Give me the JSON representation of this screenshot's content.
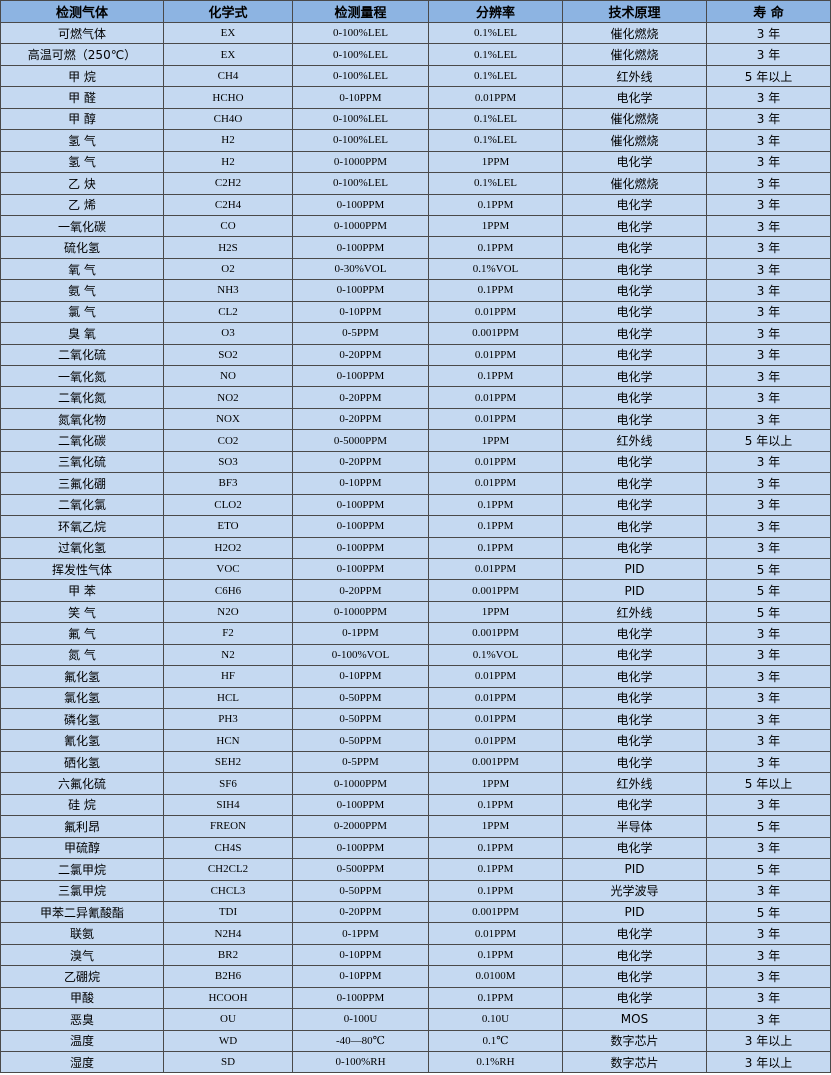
{
  "headers": [
    "检测气体",
    "化学式",
    "检测量程",
    "分辨率",
    "技术原理",
    "寿 命"
  ],
  "rows": [
    [
      "可燃气体",
      "EX",
      "0-100%LEL",
      "0.1%LEL",
      "催化燃烧",
      "3 年"
    ],
    [
      "高温可燃（250℃）",
      "EX",
      "0-100%LEL",
      "0.1%LEL",
      "催化燃烧",
      "3 年"
    ],
    [
      "甲 烷",
      "CH4",
      "0-100%LEL",
      "0.1%LEL",
      "红外线",
      "5 年以上"
    ],
    [
      "甲 醛",
      "HCHO",
      "0-10PPM",
      "0.01PPM",
      "电化学",
      "3 年"
    ],
    [
      "甲 醇",
      "CH4O",
      "0-100%LEL",
      "0.1%LEL",
      "催化燃烧",
      "3 年"
    ],
    [
      "氢 气",
      "H2",
      "0-100%LEL",
      "0.1%LEL",
      "催化燃烧",
      "3 年"
    ],
    [
      "氢 气",
      "H2",
      "0-1000PPM",
      "1PPM",
      "电化学",
      "3 年"
    ],
    [
      "乙 炔",
      "C2H2",
      "0-100%LEL",
      "0.1%LEL",
      "催化燃烧",
      "3 年"
    ],
    [
      "乙 烯",
      "C2H4",
      "0-100PPM",
      "0.1PPM",
      "电化学",
      "3 年"
    ],
    [
      "一氧化碳",
      "CO",
      "0-1000PPM",
      "1PPM",
      "电化学",
      "3 年"
    ],
    [
      "硫化氢",
      "H2S",
      "0-100PPM",
      "0.1PPM",
      "电化学",
      "3 年"
    ],
    [
      "氧 气",
      "O2",
      "0-30%VOL",
      "0.1%VOL",
      "电化学",
      "3 年"
    ],
    [
      "氨 气",
      "NH3",
      "0-100PPM",
      "0.1PPM",
      "电化学",
      "3 年"
    ],
    [
      "氯 气",
      "CL2",
      "0-10PPM",
      "0.01PPM",
      "电化学",
      "3 年"
    ],
    [
      "臭 氧",
      "O3",
      "0-5PPM",
      "0.001PPM",
      "电化学",
      "3 年"
    ],
    [
      "二氧化硫",
      "SO2",
      "0-20PPM",
      "0.01PPM",
      "电化学",
      "3 年"
    ],
    [
      "一氧化氮",
      "NO",
      "0-100PPM",
      "0.1PPM",
      "电化学",
      "3 年"
    ],
    [
      "二氧化氮",
      "NO2",
      "0-20PPM",
      "0.01PPM",
      "电化学",
      "3 年"
    ],
    [
      "氮氧化物",
      "NOX",
      "0-20PPM",
      "0.01PPM",
      "电化学",
      "3 年"
    ],
    [
      "二氧化碳",
      "CO2",
      "0-5000PPM",
      "1PPM",
      "红外线",
      "5 年以上"
    ],
    [
      "三氧化硫",
      "SO3",
      "0-20PPM",
      "0.01PPM",
      "电化学",
      "3 年"
    ],
    [
      "三氟化硼",
      "BF3",
      "0-10PPM",
      "0.01PPM",
      "电化学",
      "3 年"
    ],
    [
      "二氧化氯",
      "CLO2",
      "0-100PPM",
      "0.1PPM",
      "电化学",
      "3 年"
    ],
    [
      "环氧乙烷",
      "ETO",
      "0-100PPM",
      "0.1PPM",
      "电化学",
      "3 年"
    ],
    [
      "过氧化氢",
      "H2O2",
      "0-100PPM",
      "0.1PPM",
      "电化学",
      "3 年"
    ],
    [
      "挥发性气体",
      "VOC",
      "0-100PPM",
      "0.01PPM",
      "PID",
      "5 年"
    ],
    [
      "甲 苯",
      "C6H6",
      "0-20PPM",
      "0.001PPM",
      "PID",
      "5 年"
    ],
    [
      "笑 气",
      "N2O",
      "0-1000PPM",
      "1PPM",
      "红外线",
      "5 年"
    ],
    [
      "氟 气",
      "F2",
      "0-1PPM",
      "0.001PPM",
      "电化学",
      "3 年"
    ],
    [
      "氮 气",
      "N2",
      "0-100%VOL",
      "0.1%VOL",
      "电化学",
      "3 年"
    ],
    [
      "氟化氢",
      "HF",
      "0-10PPM",
      "0.01PPM",
      "电化学",
      "3 年"
    ],
    [
      "氯化氢",
      "HCL",
      "0-50PPM",
      "0.01PPM",
      "电化学",
      "3 年"
    ],
    [
      "磷化氢",
      "PH3",
      "0-50PPM",
      "0.01PPM",
      "电化学",
      "3 年"
    ],
    [
      "氰化氢",
      "HCN",
      "0-50PPM",
      "0.01PPM",
      "电化学",
      "3 年"
    ],
    [
      "硒化氢",
      "SEH2",
      "0-5PPM",
      "0.001PPM",
      "电化学",
      "3 年"
    ],
    [
      "六氟化硫",
      "SF6",
      "0-1000PPM",
      "1PPM",
      "红外线",
      "5 年以上"
    ],
    [
      "硅 烷",
      "SIH4",
      "0-100PPM",
      "0.1PPM",
      "电化学",
      "3 年"
    ],
    [
      "氟利昂",
      "FREON",
      "0-2000PPM",
      "1PPM",
      "半导体",
      "5 年"
    ],
    [
      "甲硫醇",
      "CH4S",
      "0-100PPM",
      "0.1PPM",
      "电化学",
      "3 年"
    ],
    [
      "二氯甲烷",
      "CH2CL2",
      "0-500PPM",
      "0.1PPM",
      "PID",
      "5 年"
    ],
    [
      "三氯甲烷",
      "CHCL3",
      "0-50PPM",
      "0.1PPM",
      "光学波导",
      "3 年"
    ],
    [
      "甲苯二异氰酸酯",
      "TDI",
      "0-20PPM",
      "0.001PPM",
      "PID",
      "5 年"
    ],
    [
      "联氨",
      "N2H4",
      "0-1PPM",
      "0.01PPM",
      "电化学",
      "3 年"
    ],
    [
      "溴气",
      "BR2",
      "0-10PPM",
      "0.1PPM",
      "电化学",
      "3 年"
    ],
    [
      "乙硼烷",
      "B2H6",
      "0-10PPM",
      "0.0100M",
      "电化学",
      "3 年"
    ],
    [
      "甲酸",
      "HCOOH",
      "0-100PPM",
      "0.1PPM",
      "电化学",
      "3 年"
    ],
    [
      "恶臭",
      "OU",
      "0-100U",
      "0.10U",
      "MOS",
      "3 年"
    ],
    [
      "温度",
      "WD",
      "-40—80℃",
      "0.1℃",
      "数字芯片",
      "3 年以上"
    ],
    [
      "湿度",
      "SD",
      "0-100%RH",
      "0.1%RH",
      "数字芯片",
      "3 年以上"
    ]
  ],
  "colors": {
    "header_bg": "#8db4e2",
    "row_bg": "#c5d9f1",
    "border": "#4a4a4a"
  }
}
